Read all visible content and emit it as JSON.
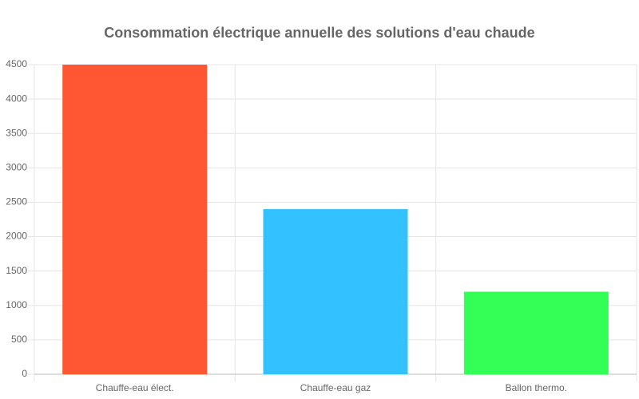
{
  "chart_data": {
    "type": "bar",
    "title": "Consommation électrique annuelle des solutions d'eau chaude",
    "categories": [
      "Chauffe-eau élect.",
      "Chauffe-eau gaz",
      "Ballon thermo."
    ],
    "values": [
      4500,
      2400,
      1200
    ],
    "colors": [
      "#ff5733",
      "#33c1ff",
      "#33ff57"
    ],
    "ylim": [
      0,
      4500
    ],
    "yticks": [
      0,
      500,
      1000,
      1500,
      2000,
      2500,
      3000,
      3500,
      4000,
      4500
    ],
    "grid": true
  }
}
